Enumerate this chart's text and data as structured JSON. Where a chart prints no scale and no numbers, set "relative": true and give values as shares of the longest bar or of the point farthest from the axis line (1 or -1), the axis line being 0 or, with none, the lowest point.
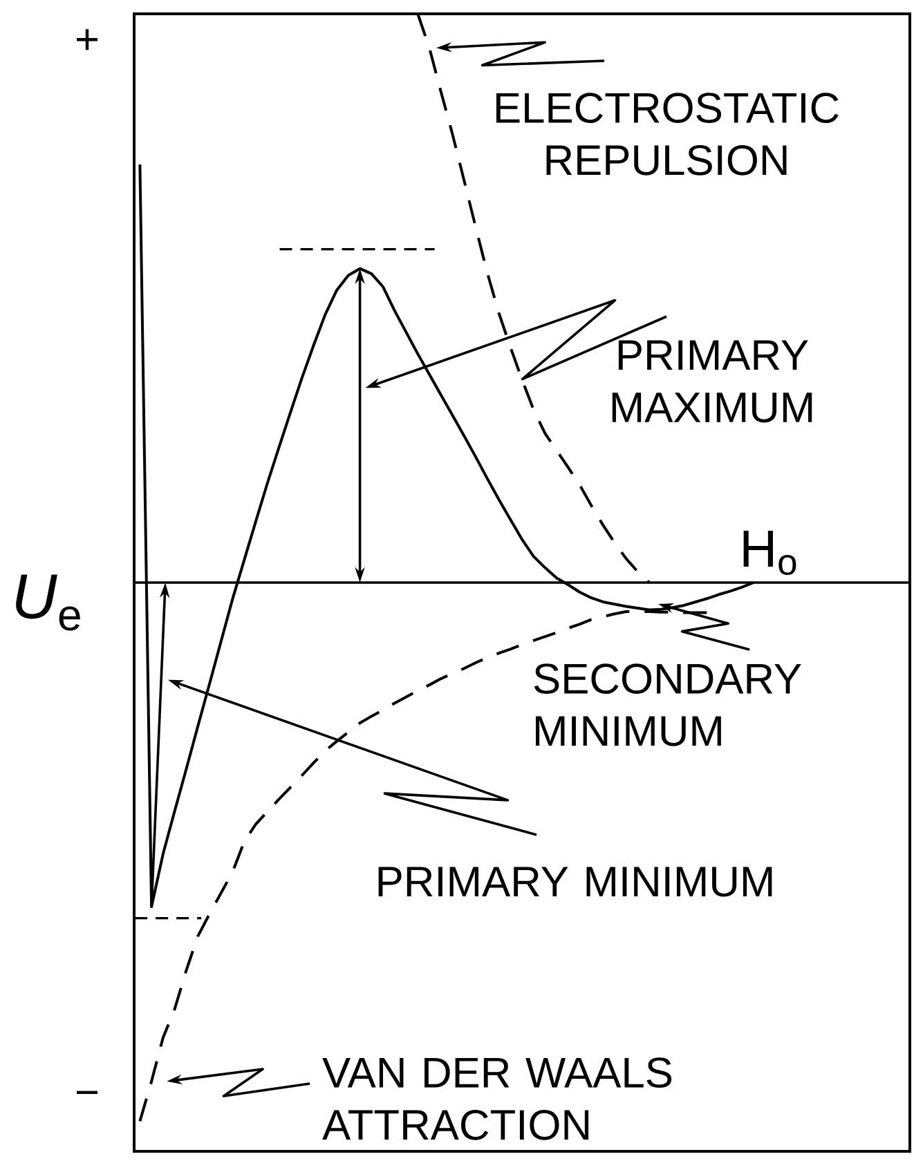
{
  "chart_data": {
    "type": "line",
    "relative": true,
    "xlabel": "H$_{o}$",
    "ylabel": "*U*$_{e}$",
    "categories": [
      null,
      null,
      null,
      null,
      null,
      null,
      null,
      null,
      null,
      null,
      null,
      null,
      null,
      null,
      null,
      null,
      null,
      null,
      null,
      null,
      null,
      null,
      null,
      null,
      null,
      null,
      null,
      null,
      null,
      null,
      null,
      null,
      null,
      null,
      null,
      null,
      null,
      null,
      null,
      null,
      null,
      null,
      null,
      null,
      null,
      null,
      null,
      null,
      null,
      null,
      null,
      null,
      null,
      null,
      null,
      null,
      null,
      null,
      null,
      null,
      null,
      null,
      null,
      null,
      null,
      null,
      null
    ],
    "series": [
      {
        "color": "#000000",
        "line_style": "solid",
        "values": [
          0.735,
          -0.57,
          -0.477,
          -0.402,
          -0.328,
          -0.253,
          -0.179,
          -0.104,
          -0.029,
          0.039,
          0.107,
          0.174,
          0.237,
          0.299,
          0.36,
          0.417,
          0.471,
          0.514,
          0.54,
          0.552,
          0.543,
          0.52,
          0.478,
          0.44,
          0.402,
          0.366,
          0.33,
          0.294,
          0.258,
          0.221,
          0.183,
          0.146,
          0.111,
          0.076,
          0.046,
          0.026,
          0.008,
          -0.004,
          -0.017,
          -0.027,
          -0.034,
          -0.038,
          -0.042,
          -0.045,
          -0.048,
          -0.047,
          -0.044,
          -0.04,
          -0.034,
          -0.028,
          -0.021,
          -0.015,
          -0.008,
          0,
          null,
          null,
          null,
          null,
          null,
          null,
          null,
          null,
          null,
          null,
          null,
          null,
          null
        ]
      },
      {
        "color": "#000000",
        "line_style": "dashed",
        "values": [
          null,
          null,
          null,
          null,
          null,
          null,
          null,
          null,
          null,
          null,
          null,
          null,
          null,
          null,
          null,
          null,
          null,
          null,
          null,
          null,
          null,
          null,
          null,
          null,
          1.0,
          0.94,
          0.863,
          0.788,
          0.707,
          0.625,
          0.545,
          0.474,
          0.414,
          0.357,
          0.304,
          0.262,
          0.232,
          0.202,
          0.171,
          0.135,
          0.101,
          0.07,
          0.042,
          0.019,
          0,
          null,
          null,
          null,
          null,
          null,
          null,
          null,
          null,
          null,
          null,
          null,
          null,
          null,
          null,
          null,
          null,
          null,
          null,
          null,
          null,
          null,
          null
        ]
      },
      {
        "color": "#000000",
        "line_style": "dashed",
        "values": [
          -0.947,
          -0.877,
          -0.8,
          -0.75,
          -0.682,
          -0.622,
          -0.583,
          -0.546,
          -0.509,
          -0.456,
          -0.425,
          -0.403,
          -0.381,
          -0.36,
          -0.339,
          -0.317,
          -0.296,
          -0.279,
          -0.263,
          -0.247,
          -0.235,
          -0.224,
          -0.212,
          -0.201,
          -0.19,
          -0.18,
          -0.169,
          -0.16,
          -0.151,
          -0.141,
          -0.132,
          -0.124,
          -0.117,
          -0.109,
          -0.102,
          -0.095,
          -0.088,
          -0.08,
          -0.073,
          -0.065,
          -0.06,
          -0.055,
          -0.051,
          -0.051,
          -0.051,
          -0.052,
          -0.052,
          -0.053,
          -0.053,
          -0.053,
          -0.053,
          null,
          null,
          null,
          null,
          null,
          null,
          null,
          null,
          null,
          null,
          null,
          null,
          null,
          null,
          null,
          null
        ]
      }
    ],
    "ref_lines": [
      {
        "axis": "y",
        "value": 0.586,
        "line_style": "dashed"
      },
      {
        "axis": "y",
        "value": -0.59,
        "line_style": "dashed"
      }
    ],
    "annotations": [
      "+",
      "ELECTROSTATIC REPULSION",
      "PRIMARY MAXIMUM",
      "SECONDARY MINIMUM",
      "PRIMARY MINIMUM",
      "−",
      "VAN DER WAALS ATTRACTION"
    ]
  }
}
